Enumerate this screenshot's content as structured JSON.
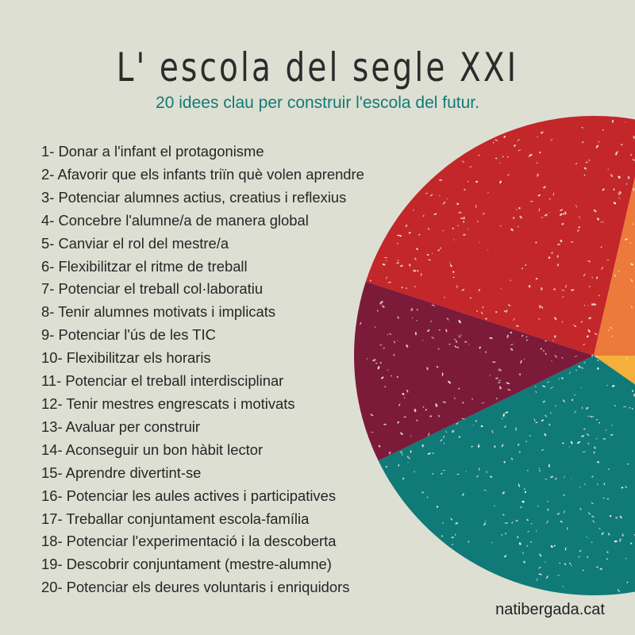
{
  "title": "L' escola del segle XXI",
  "subtitle": "20 idees clau per construir l'escola del futur.",
  "ideas": [
    "1- Donar a l'infant el protagonisme",
    "2- Afavorir que els infants triïn què volen aprendre",
    "3- Potenciar alumnes actius, creatius i reflexius",
    "4- Concebre l'alumne/a de manera global",
    "5- Canviar el rol del mestre/a",
    "6- Flexibilitzar el ritme de treball",
    "7- Potenciar el treball col·laboratiu",
    "8- Tenir alumnes motivats i implicats",
    "9- Potenciar l'ús de les TIC",
    "10- Flexibilitzar els horaris",
    "11- Potenciar el treball interdisciplinar",
    "12- Tenir mestres engrescats i motivats",
    "13- Avaluar per construir",
    "14- Aconseguir un bon hàbit lector",
    "15- Aprendre divertint-se",
    "16- Potenciar les aules actives i participatives",
    "17- Treballar conjuntament escola-família",
    "18- Potenciar l'experimentació i la descoberta",
    "19- Descobrir conjuntament (mestre-alumne)",
    "20- Potenciar els deures voluntaris i enriquidors"
  ],
  "website": "natibergada.cat",
  "colors": {
    "background": "#dddfd3",
    "title": "#2b2b2b",
    "subtitle": "#137a76",
    "text": "#262626"
  },
  "pie_segments": [
    {
      "name": "red",
      "color": "#c3272a"
    },
    {
      "name": "orange",
      "color": "#ec7a3b"
    },
    {
      "name": "yellow",
      "color": "#f4b03a"
    },
    {
      "name": "teal",
      "color": "#0f7a78"
    },
    {
      "name": "maroon",
      "color": "#7c1a3a"
    }
  ]
}
